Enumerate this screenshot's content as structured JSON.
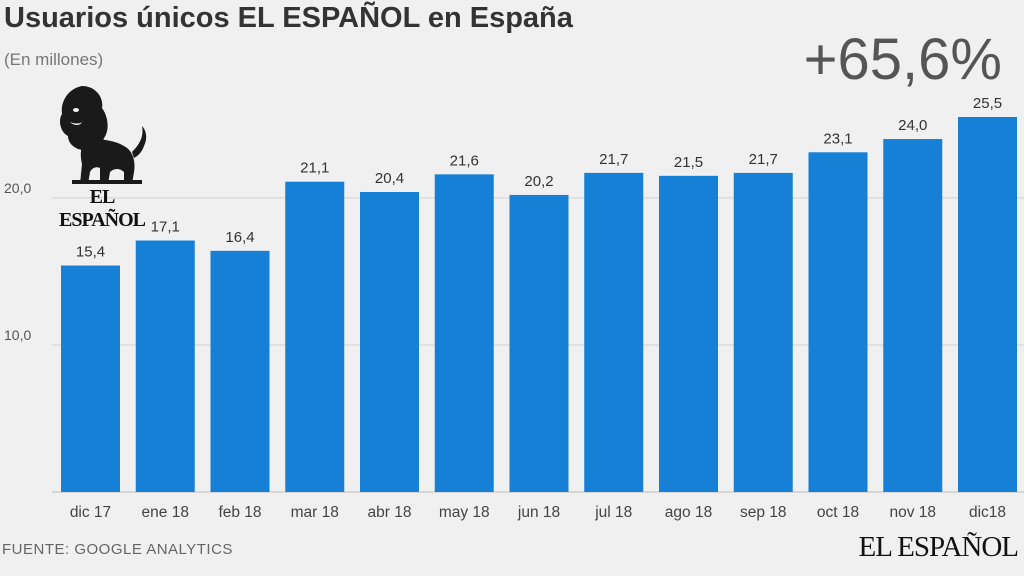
{
  "header": {
    "title": "Usuarios únicos EL ESPAÑOL en España",
    "subtitle": "(En millones)",
    "growth_badge": "+65,6%"
  },
  "footer": {
    "source": "FUENTE: GOOGLE ANALYTICS",
    "brand": "EL ESPAÑOL"
  },
  "logo": {
    "text": "EL ESPAÑOL",
    "icon": "lion-icon"
  },
  "colors": {
    "bar": "#1580d6",
    "background": "#f0f0f0",
    "grid": "#d2d2d2"
  },
  "chart_data": {
    "type": "bar",
    "title": "Usuarios únicos EL ESPAÑOL en España",
    "subtitle": "(En millones)",
    "xlabel": "",
    "ylabel": "",
    "categories": [
      "dic 17",
      "ene 18",
      "feb 18",
      "mar 18",
      "abr 18",
      "may 18",
      "jun 18",
      "jul 18",
      "ago 18",
      "sep 18",
      "oct 18",
      "nov 18",
      "dic18"
    ],
    "values": [
      15.4,
      17.1,
      16.4,
      21.1,
      20.4,
      21.6,
      20.2,
      21.7,
      21.5,
      21.7,
      23.1,
      24.0,
      25.5
    ],
    "value_labels": [
      "15,4",
      "17,1",
      "16,4",
      "21,1",
      "20,4",
      "21,6",
      "20,2",
      "21,7",
      "21,5",
      "21,7",
      "23,1",
      "24,0",
      "25,5"
    ],
    "yticks": [
      10,
      20
    ],
    "ytick_labels": [
      "10,0",
      "20,0"
    ],
    "ylim": [
      0,
      25.5
    ],
    "grid": true,
    "legend": "none"
  }
}
